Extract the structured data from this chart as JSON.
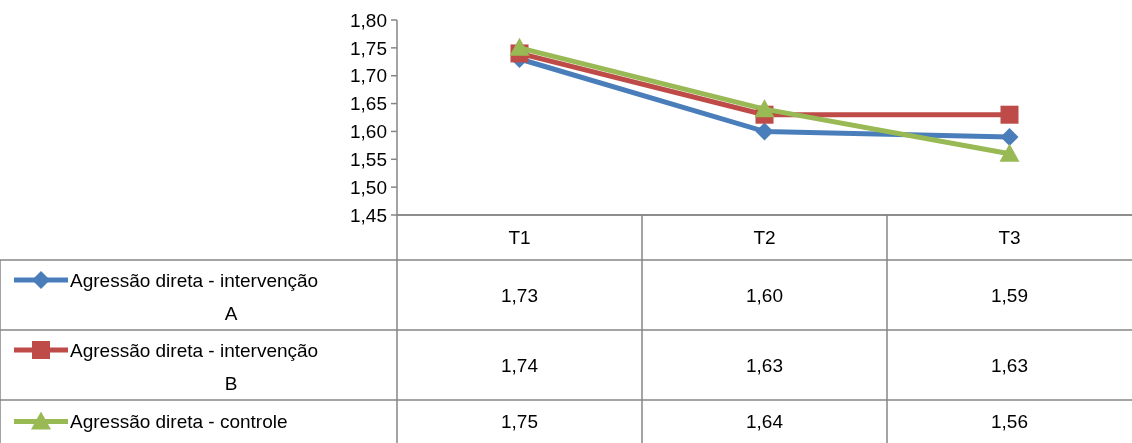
{
  "chart_data": {
    "type": "line",
    "categories": [
      "T1",
      "T2",
      "T3"
    ],
    "series": [
      {
        "name": "Agressão direta - intervenção A",
        "color": "#4a7ebb",
        "marker": "diamond",
        "values": [
          1.73,
          1.6,
          1.59
        ],
        "value_labels": [
          "1,73",
          "1,60",
          "1,59"
        ]
      },
      {
        "name": "Agressão direta - intervenção B",
        "color": "#be4b48",
        "marker": "square",
        "values": [
          1.74,
          1.63,
          1.63
        ],
        "value_labels": [
          "1,74",
          "1,63",
          "1,63"
        ]
      },
      {
        "name": "Agressão direta - controle",
        "color": "#98b954",
        "marker": "triangle",
        "values": [
          1.75,
          1.64,
          1.56
        ],
        "value_labels": [
          "1,75",
          "1,64",
          "1,56"
        ]
      }
    ],
    "ylim": [
      1.45,
      1.8
    ],
    "yticks": [
      {
        "value": 1.45,
        "label": "1,45"
      },
      {
        "value": 1.5,
        "label": "1,50"
      },
      {
        "value": 1.55,
        "label": "1,55"
      },
      {
        "value": 1.6,
        "label": "1,60"
      },
      {
        "value": 1.65,
        "label": "1,65"
      },
      {
        "value": 1.7,
        "label": "1,70"
      },
      {
        "value": 1.75,
        "label": "1,75"
      },
      {
        "value": 1.8,
        "label": "1,80"
      }
    ],
    "grid": false,
    "legend": "bottom",
    "line_style": "solid"
  }
}
